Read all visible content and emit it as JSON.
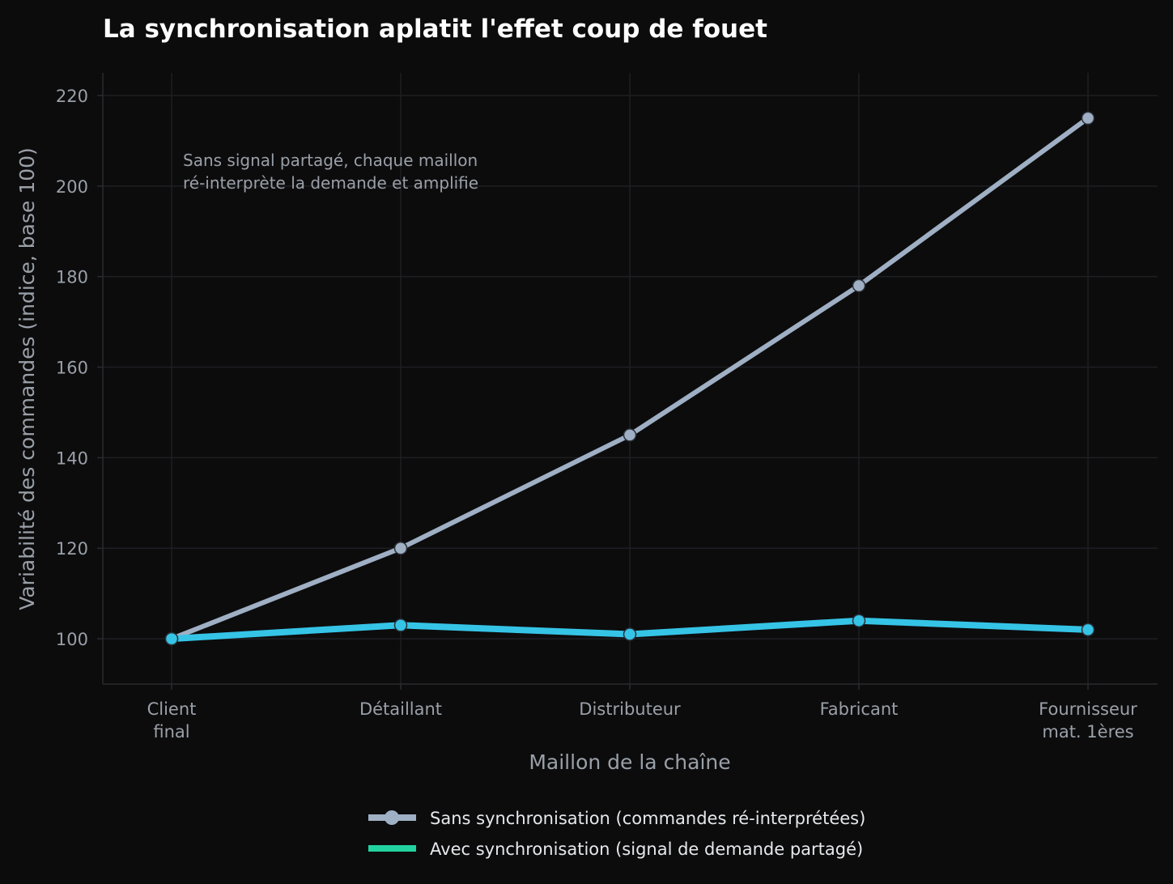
{
  "chart_data": {
    "type": "line",
    "title": "La synchronisation aplatit l'effet coup de fouet",
    "xlabel": "Maillon de la chaîne",
    "ylabel": "Variabilité des commandes (indice, base 100)",
    "categories": [
      [
        "Client",
        "final"
      ],
      [
        "Détaillant"
      ],
      [
        "Distributeur"
      ],
      [
        "Fabricant"
      ],
      [
        "Fournisseur",
        "mat. 1ères"
      ]
    ],
    "ylim": [
      90,
      225
    ],
    "yticks": [
      100,
      120,
      140,
      160,
      180,
      200,
      220
    ],
    "grid": true,
    "legend_position": "bottom",
    "series": [
      {
        "name": "Sans synchronisation (commandes ré-interprétées)",
        "values": [
          100,
          120,
          145,
          178,
          215
        ],
        "color": "#9fafc4",
        "legend_color": "#9fafc4"
      },
      {
        "name": "Avec synchronisation (signal de demande partagé)",
        "values": [
          100,
          103,
          101,
          104,
          102
        ],
        "color": "#35c4e6",
        "legend_color": "#22d3a0"
      }
    ],
    "annotation": [
      "Sans signal partagé, chaque maillon",
      "ré-interprète la demande et amplifie"
    ]
  }
}
